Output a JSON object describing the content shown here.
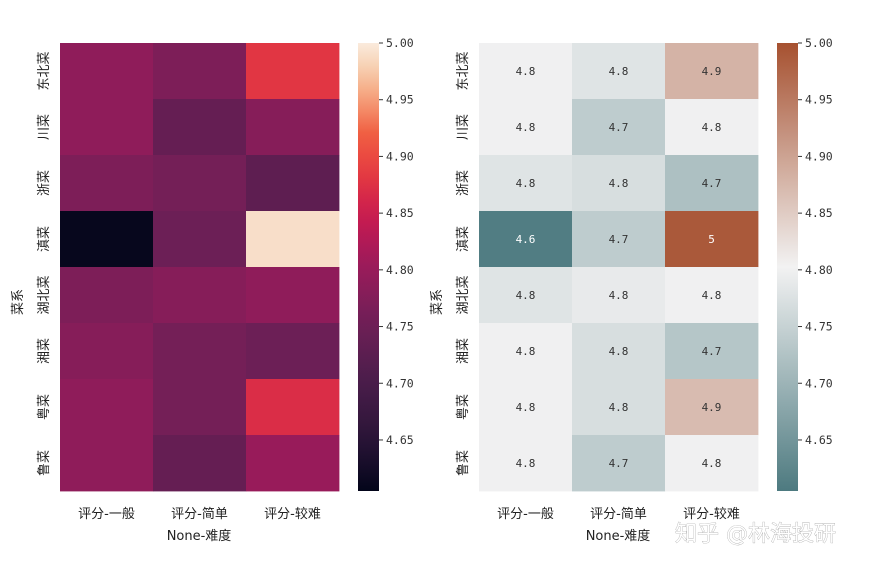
{
  "chart_data": [
    {
      "type": "heatmap",
      "title": "",
      "xlabel": "None-难度",
      "ylabel": "菜系",
      "x_categories": [
        "评分-一般",
        "评分-简单",
        "评分-较难"
      ],
      "y_categories": [
        "东北菜",
        "川菜",
        "浙菜",
        "滇菜",
        "湖北菜",
        "湘菜",
        "粤菜",
        "鲁菜"
      ],
      "values": [
        [
          4.79,
          4.77,
          4.88
        ],
        [
          4.79,
          4.74,
          4.78
        ],
        [
          4.77,
          4.76,
          4.73
        ],
        [
          4.61,
          4.75,
          4.99
        ],
        [
          4.77,
          4.78,
          4.79
        ],
        [
          4.78,
          4.76,
          4.75
        ],
        [
          4.79,
          4.76,
          4.87
        ],
        [
          4.79,
          4.74,
          4.8
        ]
      ],
      "colorscale": "rocket",
      "vmin": 4.605,
      "vmax": 5.0,
      "colorbar_ticks": [
        "4.65",
        "4.70",
        "4.75",
        "4.80",
        "4.85",
        "4.90",
        "4.95",
        "5.00"
      ],
      "annotations": false
    },
    {
      "type": "heatmap",
      "title": "",
      "xlabel": "None-难度",
      "ylabel": "菜系",
      "x_categories": [
        "评分-一般",
        "评分-简单",
        "评分-较难"
      ],
      "y_categories": [
        "东北菜",
        "川菜",
        "浙菜",
        "滇菜",
        "湖北菜",
        "湘菜",
        "粤菜",
        "鲁菜"
      ],
      "values": [
        [
          4.8,
          4.78,
          4.88
        ],
        [
          4.8,
          4.74,
          4.8
        ],
        [
          4.78,
          4.77,
          4.72
        ],
        [
          4.61,
          4.74,
          4.99
        ],
        [
          4.78,
          4.79,
          4.8
        ],
        [
          4.8,
          4.77,
          4.73
        ],
        [
          4.8,
          4.77,
          4.87
        ],
        [
          4.8,
          4.74,
          4.8
        ]
      ],
      "annotation_labels": [
        [
          "4.8",
          "4.8",
          "4.9"
        ],
        [
          "4.8",
          "4.7",
          "4.8"
        ],
        [
          "4.8",
          "4.8",
          "4.7"
        ],
        [
          "4.6",
          "4.7",
          "5"
        ],
        [
          "4.8",
          "4.8",
          "4.8"
        ],
        [
          "4.8",
          "4.8",
          "4.7"
        ],
        [
          "4.8",
          "4.8",
          "4.9"
        ],
        [
          "4.8",
          "4.7",
          "4.8"
        ]
      ],
      "colorscale": "diverging teal-white-brown",
      "colors": {
        "low": "#4d7a80",
        "mid": "#f2f2f2",
        "high": "#a65130"
      },
      "vmin": 4.605,
      "vmax": 5.0,
      "colorbar_ticks": [
        "4.65",
        "4.70",
        "4.75",
        "4.80",
        "4.85",
        "4.90",
        "4.95",
        "5.00"
      ],
      "annotations": true
    }
  ],
  "watermark": "知乎 @林海投研"
}
